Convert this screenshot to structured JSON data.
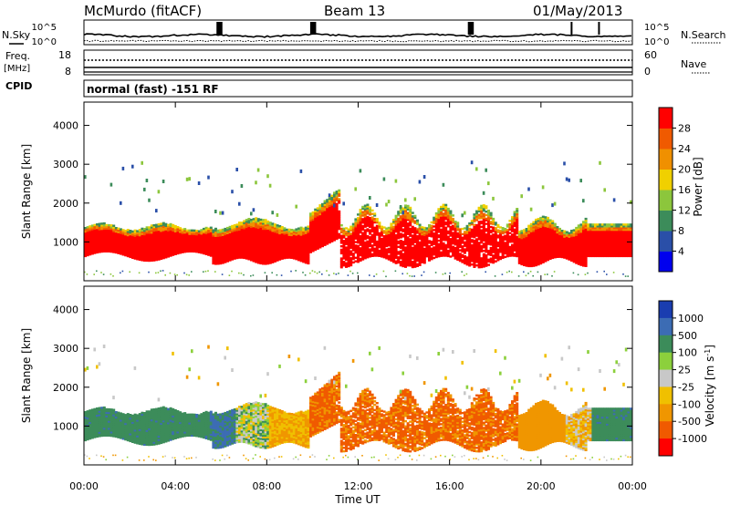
{
  "header": {
    "station": "McMurdo (fitACF)",
    "beam": "Beam 13",
    "date": "01/May/2013"
  },
  "top_panels": {
    "nsky_label": "N.Sky",
    "nsky_ticks": [
      "10^5",
      "10^0"
    ],
    "nsearch_label": "N.Search",
    "nsearch_ticks": [
      "10^5",
      "10^0"
    ],
    "freq_label": "Freq.",
    "freq_unit": "[MHz]",
    "freq_ticks": [
      "18",
      "8"
    ],
    "nave_label": "Nave",
    "nave_ticks": [
      "60",
      "0"
    ],
    "cpid_label": "CPID",
    "cpid_value": "normal (fast) -151 RF"
  },
  "colors": {
    "power_scale": [
      "#0000ee",
      "#2a4fa8",
      "#3c8c5a",
      "#8cc63c",
      "#f0d000",
      "#f09000",
      "#f05a00",
      "#ff0000"
    ],
    "velocity_scale": [
      "#1a3db0",
      "#3c6cb4",
      "#3c8c5a",
      "#8cd03c",
      "#c8c8c8",
      "#f0c000",
      "#f09600",
      "#f05a00",
      "#ff0000"
    ]
  },
  "chart_data": [
    {
      "type": "heatmap",
      "name": "power",
      "ylabel": "Slant Range [km]",
      "ylim": [
        0,
        4600
      ],
      "yticks": [
        1000,
        2000,
        3000,
        4000
      ],
      "xlim_hours": [
        0,
        24
      ],
      "colorbar_label": "Power [dB]",
      "colorbar_ticks": [
        "4",
        "8",
        "12",
        "16",
        "20",
        "24",
        "28"
      ],
      "colorbar_range": [
        0,
        32
      ]
    },
    {
      "type": "heatmap",
      "name": "velocity",
      "ylabel": "Slant Range [km]",
      "ylim": [
        0,
        4600
      ],
      "yticks": [
        1000,
        2000,
        3000,
        4000
      ],
      "xlim_hours": [
        0,
        24
      ],
      "colorbar_label": "Velocity [m s",
      "colorbar_label_sup": "-1",
      "colorbar_label_end": "]",
      "colorbar_ticks": [
        "1000",
        "500",
        "100",
        "25",
        "-25",
        "-100",
        "-500",
        "-1000"
      ]
    }
  ],
  "x_axis": {
    "ticks": [
      "00:00",
      "04:00",
      "08:00",
      "12:00",
      "16:00",
      "20:00",
      "00:00"
    ],
    "label": "Time UT"
  }
}
